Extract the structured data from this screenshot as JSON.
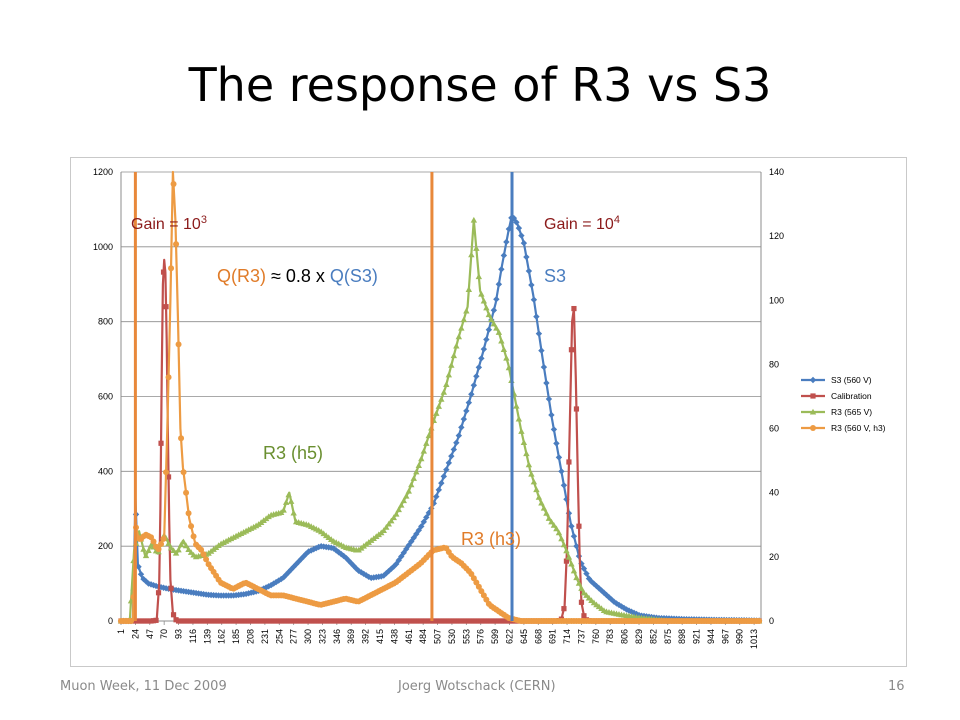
{
  "slide": {
    "title": "The response of R3 vs S3",
    "footer_left": "Muon Week, 11 Dec 2009",
    "footer_center": "Joerg Wotschack (CERN)",
    "page_number": "16"
  },
  "annotations": {
    "gain_low_base": "Gain = 10",
    "gain_low_exp": "3",
    "gain_high_base": "Gain = 10",
    "gain_high_exp": "4",
    "q_r3": "Q(R3)",
    "q_approx": " ≈ 0.8 x ",
    "q_s3": "Q(S3)",
    "label_s3": "S3",
    "label_r3h5": "R3 (h5)",
    "label_r3h3": "R3 (h3)"
  },
  "chart_data": {
    "type": "line",
    "x_tick_labels": [
      "1",
      "24",
      "47",
      "70",
      "93",
      "116",
      "139",
      "162",
      "185",
      "208",
      "231",
      "254",
      "277",
      "300",
      "323",
      "346",
      "369",
      "392",
      "415",
      "438",
      "461",
      "484",
      "507",
      "530",
      "553",
      "576",
      "599",
      "622",
      "645",
      "668",
      "691",
      "714",
      "737",
      "760",
      "783",
      "806",
      "829",
      "852",
      "875",
      "898",
      "921",
      "944",
      "967",
      "990",
      "1013"
    ],
    "xlim": [
      1,
      1024
    ],
    "y_left": {
      "lim": [
        0,
        1200
      ],
      "ticks": [
        "0",
        "200",
        "400",
        "600",
        "800",
        "1000",
        "1200"
      ]
    },
    "y_right": {
      "lim": [
        0,
        140
      ],
      "ticks": [
        "0",
        "20",
        "40",
        "60",
        "80",
        "100",
        "120",
        "140"
      ]
    },
    "grid": true,
    "legend_position": "right",
    "vertical_lines": [
      {
        "x": 24,
        "color": "#e8883a"
      },
      {
        "x": 498,
        "color": "#e8883a"
      },
      {
        "x": 626,
        "color": "#4a7dbf"
      }
    ],
    "series": [
      {
        "name": "S3 (560 V)",
        "color": "#4a7dbf",
        "marker": "diamond",
        "axis": "left",
        "points": [
          [
            1,
            0
          ],
          [
            20,
            0
          ],
          [
            24,
            330
          ],
          [
            28,
            150
          ],
          [
            35,
            115
          ],
          [
            45,
            100
          ],
          [
            60,
            92
          ],
          [
            80,
            85
          ],
          [
            100,
            80
          ],
          [
            120,
            75
          ],
          [
            140,
            70
          ],
          [
            160,
            68
          ],
          [
            180,
            68
          ],
          [
            200,
            72
          ],
          [
            220,
            80
          ],
          [
            240,
            95
          ],
          [
            260,
            115
          ],
          [
            280,
            150
          ],
          [
            300,
            185
          ],
          [
            320,
            200
          ],
          [
            340,
            195
          ],
          [
            360,
            170
          ],
          [
            380,
            135
          ],
          [
            400,
            115
          ],
          [
            420,
            120
          ],
          [
            440,
            150
          ],
          [
            460,
            200
          ],
          [
            480,
            250
          ],
          [
            500,
            310
          ],
          [
            520,
            400
          ],
          [
            540,
            490
          ],
          [
            560,
            600
          ],
          [
            580,
            720
          ],
          [
            600,
            850
          ],
          [
            610,
            950
          ],
          [
            620,
            1040
          ],
          [
            626,
            1085
          ],
          [
            635,
            1060
          ],
          [
            645,
            1010
          ],
          [
            660,
            870
          ],
          [
            675,
            700
          ],
          [
            690,
            540
          ],
          [
            705,
            400
          ],
          [
            720,
            260
          ],
          [
            735,
            160
          ],
          [
            750,
            110
          ],
          [
            770,
            80
          ],
          [
            790,
            50
          ],
          [
            810,
            30
          ],
          [
            830,
            15
          ],
          [
            860,
            8
          ],
          [
            900,
            5
          ],
          [
            950,
            3
          ],
          [
            1000,
            2
          ],
          [
            1024,
            1
          ]
        ]
      },
      {
        "name": "Calibration",
        "color": "#c0504d",
        "marker": "square",
        "axis": "left",
        "points": [
          [
            1,
            0
          ],
          [
            50,
            0
          ],
          [
            58,
            2
          ],
          [
            62,
            100
          ],
          [
            64,
            300
          ],
          [
            66,
            650
          ],
          [
            68,
            900
          ],
          [
            70,
            965
          ],
          [
            72,
            930
          ],
          [
            74,
            750
          ],
          [
            76,
            500
          ],
          [
            78,
            270
          ],
          [
            80,
            110
          ],
          [
            84,
            20
          ],
          [
            90,
            0
          ],
          [
            700,
            0
          ],
          [
            705,
            5
          ],
          [
            710,
            40
          ],
          [
            714,
            200
          ],
          [
            718,
            500
          ],
          [
            722,
            800
          ],
          [
            725,
            835
          ],
          [
            728,
            650
          ],
          [
            731,
            400
          ],
          [
            734,
            180
          ],
          [
            737,
            50
          ],
          [
            742,
            5
          ],
          [
            750,
            0
          ],
          [
            1024,
            0
          ]
        ]
      },
      {
        "name": "R3 (565 V)",
        "color": "#9bbb59",
        "marker": "triangle",
        "axis": "right",
        "points": [
          [
            1,
            0
          ],
          [
            15,
            0
          ],
          [
            22,
            22
          ],
          [
            30,
            28
          ],
          [
            40,
            20
          ],
          [
            50,
            24
          ],
          [
            60,
            21
          ],
          [
            70,
            27
          ],
          [
            80,
            23
          ],
          [
            90,
            21
          ],
          [
            100,
            25
          ],
          [
            110,
            22
          ],
          [
            120,
            20
          ],
          [
            140,
            21
          ],
          [
            160,
            24
          ],
          [
            180,
            26
          ],
          [
            200,
            28
          ],
          [
            220,
            30
          ],
          [
            240,
            33
          ],
          [
            260,
            34
          ],
          [
            270,
            40
          ],
          [
            280,
            31
          ],
          [
            300,
            30
          ],
          [
            320,
            28
          ],
          [
            340,
            25
          ],
          [
            360,
            23
          ],
          [
            380,
            22
          ],
          [
            400,
            25
          ],
          [
            420,
            28
          ],
          [
            440,
            33
          ],
          [
            460,
            40
          ],
          [
            480,
            50
          ],
          [
            500,
            62
          ],
          [
            520,
            73
          ],
          [
            540,
            88
          ],
          [
            555,
            98
          ],
          [
            565,
            125
          ],
          [
            575,
            103
          ],
          [
            590,
            95
          ],
          [
            605,
            90
          ],
          [
            620,
            80
          ],
          [
            640,
            60
          ],
          [
            655,
            47
          ],
          [
            670,
            38
          ],
          [
            685,
            32
          ],
          [
            700,
            28
          ],
          [
            715,
            21
          ],
          [
            730,
            13
          ],
          [
            740,
            9
          ],
          [
            755,
            6
          ],
          [
            775,
            3
          ],
          [
            800,
            2
          ],
          [
            830,
            1
          ],
          [
            880,
            0
          ],
          [
            1024,
            0
          ]
        ]
      },
      {
        "name": "R3 (560 V, h3)",
        "color": "#ed9b43",
        "marker": "circle",
        "axis": "right",
        "points": [
          [
            1,
            0
          ],
          [
            20,
            0
          ],
          [
            24,
            30
          ],
          [
            30,
            25
          ],
          [
            40,
            27
          ],
          [
            50,
            26
          ],
          [
            60,
            22
          ],
          [
            70,
            26
          ],
          [
            75,
            60
          ],
          [
            80,
            100
          ],
          [
            84,
            140
          ],
          [
            88,
            125
          ],
          [
            92,
            95
          ],
          [
            96,
            60
          ],
          [
            100,
            48
          ],
          [
            105,
            40
          ],
          [
            110,
            32
          ],
          [
            120,
            24
          ],
          [
            130,
            22
          ],
          [
            140,
            18
          ],
          [
            150,
            15
          ],
          [
            160,
            12
          ],
          [
            180,
            10
          ],
          [
            200,
            12
          ],
          [
            220,
            10
          ],
          [
            240,
            8
          ],
          [
            260,
            8
          ],
          [
            280,
            7
          ],
          [
            300,
            6
          ],
          [
            320,
            5
          ],
          [
            340,
            6
          ],
          [
            360,
            7
          ],
          [
            380,
            6
          ],
          [
            400,
            8
          ],
          [
            420,
            10
          ],
          [
            440,
            12
          ],
          [
            460,
            15
          ],
          [
            480,
            18
          ],
          [
            500,
            22
          ],
          [
            520,
            23
          ],
          [
            530,
            20
          ],
          [
            545,
            18
          ],
          [
            560,
            15
          ],
          [
            575,
            10
          ],
          [
            590,
            5
          ],
          [
            605,
            3
          ],
          [
            620,
            1
          ],
          [
            640,
            0
          ],
          [
            1024,
            0
          ]
        ]
      }
    ]
  }
}
